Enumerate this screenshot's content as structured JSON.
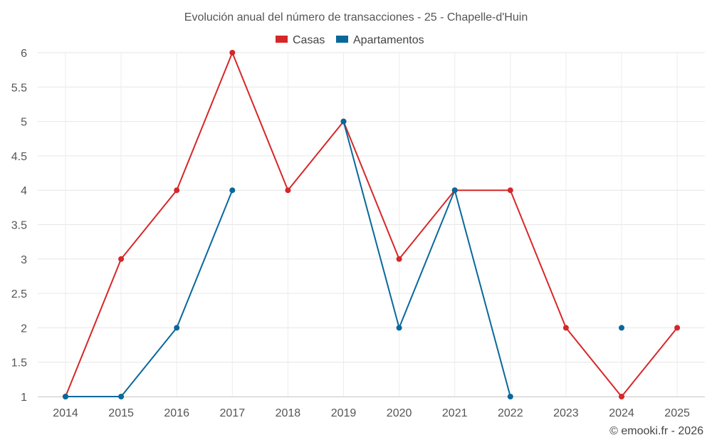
{
  "chart_data": {
    "type": "line",
    "title": "Evolución anual del número de transacciones - 25 - Chapelle-d'Huin",
    "categories": [
      "2014",
      "2015",
      "2016",
      "2017",
      "2018",
      "2019",
      "2020",
      "2021",
      "2022",
      "2023",
      "2024",
      "2025"
    ],
    "ylim": [
      1,
      6
    ],
    "yticks": [
      "1",
      "1.5",
      "2",
      "2.5",
      "3",
      "3.5",
      "4",
      "4.5",
      "5",
      "5.5",
      "6"
    ],
    "grid": true,
    "legend_position": "top-center",
    "series": [
      {
        "name": "Casas",
        "color": "#d62728",
        "values": [
          1,
          3,
          4,
          6,
          4,
          5,
          3,
          4,
          4,
          2,
          1,
          2
        ]
      },
      {
        "name": "Apartamentos",
        "color": "#08689c",
        "values": [
          1,
          1,
          2,
          4,
          null,
          5,
          2,
          4,
          1,
          null,
          2,
          null
        ]
      }
    ]
  },
  "credit": "© emooki.fr - 2026"
}
